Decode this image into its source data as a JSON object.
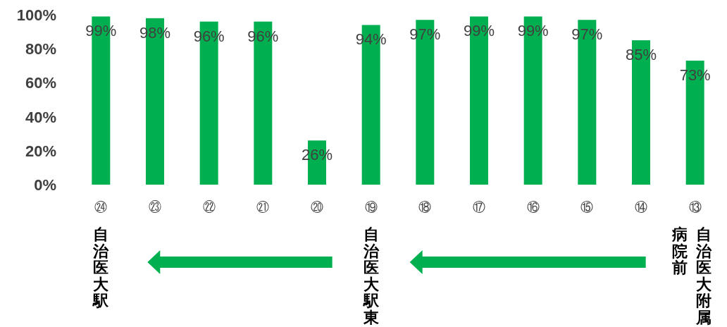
{
  "chart_data": {
    "type": "bar",
    "categories": [
      "㉔",
      "㉓",
      "㉒",
      "㉑",
      "⑳",
      "⑲",
      "⑱",
      "⑰",
      "⑯",
      "⑮",
      "⑭",
      "⑬"
    ],
    "values": [
      99,
      98,
      96,
      96,
      26,
      94,
      97,
      99,
      99,
      97,
      85,
      73
    ],
    "value_labels": [
      "99%",
      "98%",
      "96%",
      "96%",
      "26%",
      "94%",
      "97%",
      "99%",
      "99%",
      "97%",
      "85%",
      "73%"
    ],
    "color": "#00b050",
    "ylim": [
      0,
      100
    ],
    "yticks": [
      {
        "value": 0,
        "label": "0%"
      },
      {
        "value": 20,
        "label": "20%"
      },
      {
        "value": 40,
        "label": "40%"
      },
      {
        "value": 60,
        "label": "60%"
      },
      {
        "value": 80,
        "label": "80%"
      },
      {
        "value": 100,
        "label": "100%"
      }
    ],
    "grid": false,
    "annotations": [
      "自治医大駅",
      "自治医大駅東",
      "自治医大附属",
      "病院前"
    ]
  }
}
